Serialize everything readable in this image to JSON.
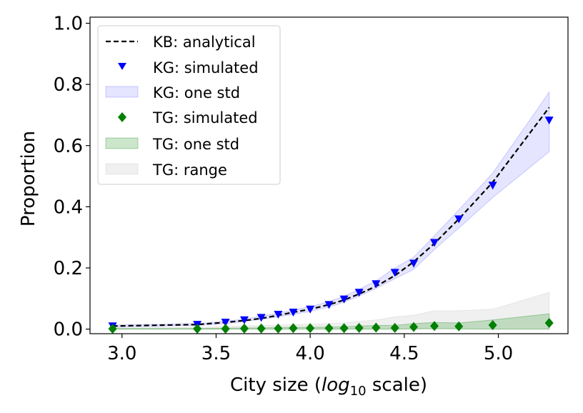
{
  "chart_data": {
    "type": "line",
    "xlabel": {
      "prefix": "City size (",
      "italic": "log",
      "sub": "10",
      "suffix": " scale)"
    },
    "ylabel": "Proportion",
    "xlim": [
      2.83,
      5.37
    ],
    "ylim": [
      -0.015,
      1.02
    ],
    "xticks": [
      3.0,
      3.5,
      4.0,
      4.5,
      5.0
    ],
    "xtick_labels": [
      "3.0",
      "3.5",
      "4.0",
      "4.5",
      "5.0"
    ],
    "yticks": [
      0.0,
      0.2,
      0.4,
      0.6,
      0.8,
      1.0
    ],
    "ytick_labels": [
      "0.0",
      "0.2",
      "0.4",
      "0.6",
      "0.8",
      "1.0"
    ],
    "legend": {
      "position": "top-left",
      "entries": [
        "KB: analytical",
        "KG: simulated",
        "KG: one std",
        "TG: simulated",
        "TG: one std",
        "TG: range"
      ]
    },
    "x": [
      2.95,
      3.4,
      3.55,
      3.65,
      3.74,
      3.83,
      3.91,
      4.0,
      4.1,
      4.18,
      4.26,
      4.35,
      4.45,
      4.55,
      4.66,
      4.79,
      4.97,
      5.27
    ],
    "series": [
      {
        "name": "KB: analytical",
        "style": "dashed-line",
        "color": "#000000",
        "values": [
          0.01,
          0.015,
          0.022,
          0.028,
          0.035,
          0.045,
          0.055,
          0.065,
          0.08,
          0.095,
          0.115,
          0.14,
          0.175,
          0.22,
          0.28,
          0.36,
          0.48,
          0.725
        ]
      },
      {
        "name": "KG: simulated",
        "style": "triangle-down",
        "color": "#0000ff",
        "values": [
          0.01,
          0.015,
          0.022,
          0.03,
          0.038,
          0.048,
          0.055,
          0.065,
          0.08,
          0.098,
          0.12,
          0.148,
          0.185,
          0.215,
          0.283,
          0.36,
          0.47,
          0.683
        ]
      },
      {
        "name": "KG: one std",
        "style": "band",
        "color": "#0000ff",
        "lower": [
          0.007,
          0.012,
          0.018,
          0.025,
          0.032,
          0.04,
          0.048,
          0.058,
          0.072,
          0.088,
          0.108,
          0.133,
          0.165,
          0.195,
          0.26,
          0.33,
          0.43,
          0.58
        ],
        "upper": [
          0.013,
          0.018,
          0.026,
          0.033,
          0.042,
          0.052,
          0.062,
          0.073,
          0.09,
          0.108,
          0.13,
          0.158,
          0.2,
          0.235,
          0.305,
          0.39,
          0.51,
          0.775
        ]
      },
      {
        "name": "TG: simulated",
        "style": "diamond",
        "color": "#008000",
        "values": [
          0.001,
          0.001,
          0.001,
          0.002,
          0.002,
          0.002,
          0.003,
          0.003,
          0.003,
          0.003,
          0.004,
          0.005,
          0.004,
          0.007,
          0.01,
          0.009,
          0.013,
          0.02
        ]
      },
      {
        "name": "TG: one std",
        "style": "band",
        "color": "#008000",
        "lower": [
          0.0,
          0.0,
          0.0,
          0.0,
          0.0,
          0.0,
          0.0,
          0.0,
          0.0,
          0.0,
          0.0,
          0.0,
          0.0,
          0.001,
          0.002,
          0.001,
          0.0,
          0.0
        ],
        "upper": [
          0.002,
          0.002,
          0.003,
          0.004,
          0.004,
          0.005,
          0.006,
          0.006,
          0.007,
          0.008,
          0.01,
          0.012,
          0.012,
          0.018,
          0.022,
          0.02,
          0.03,
          0.05
        ]
      },
      {
        "name": "TG: range",
        "style": "band",
        "color": "#808080",
        "lower": [
          0.0,
          0.0,
          0.0,
          0.0,
          0.0,
          0.0,
          0.0,
          0.0,
          0.0,
          0.0,
          0.0,
          0.0,
          0.0,
          0.0,
          0.0,
          0.0,
          0.0,
          0.0
        ],
        "upper": [
          0.004,
          0.006,
          0.008,
          0.01,
          0.011,
          0.013,
          0.015,
          0.016,
          0.018,
          0.02,
          0.025,
          0.03,
          0.04,
          0.045,
          0.06,
          0.06,
          0.065,
          0.12
        ]
      }
    ]
  }
}
